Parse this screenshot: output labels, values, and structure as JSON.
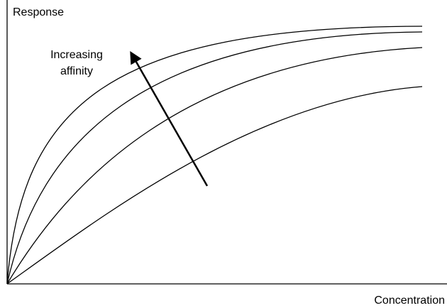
{
  "y_axis_label": "Response",
  "x_axis_label": "Concentration",
  "annotation": {
    "lines": [
      "Increasing",
      "affinity"
    ]
  }
}
